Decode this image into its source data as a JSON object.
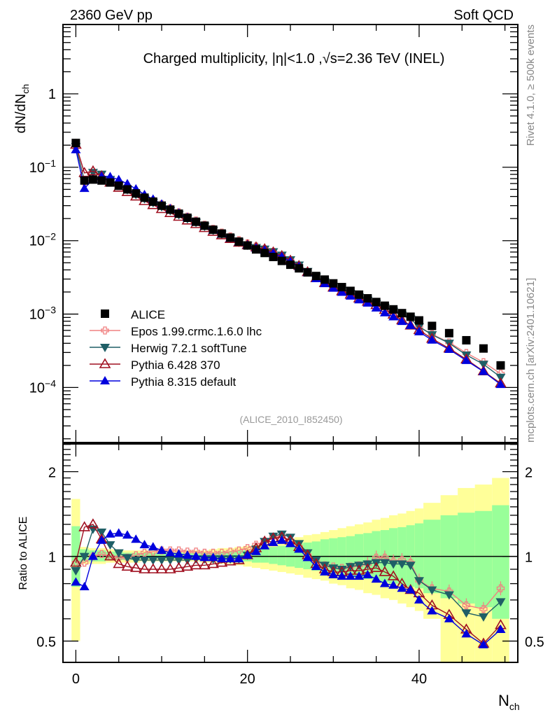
{
  "header": {
    "left_label": "2360 GeV pp",
    "right_label": "Soft QCD"
  },
  "side_labels": {
    "rivet": "Rivet 4.1.0, ≥ 500k events",
    "mcplots": "mcplots.cern.ch [arXiv:2401.10621]"
  },
  "chart_data": [
    {
      "type": "scatter",
      "panel": "main",
      "title": "Charged multiplicity, |η|<1.0 ,√s=2.36 TeV (INEL)",
      "xlabel": "N_ch",
      "ylabel": "dN/dN_ch",
      "yscale": "log",
      "xlim": [
        -1.5,
        51.5
      ],
      "ylim": [
        1.78e-05,
        8.8
      ],
      "yticks": [
        1,
        0.1,
        0.01,
        0.001,
        0.0001
      ],
      "ytick_labels": [
        "1",
        "10^-1",
        "10^-2",
        "10^-3",
        "10^-4"
      ],
      "xticks": [
        0,
        20,
        40
      ],
      "xtick_labels": [
        "0",
        "20",
        "40"
      ],
      "analysis_label": "(ALICE_2010_I852450)",
      "legend_position": "lower-left",
      "x": [
        0,
        1,
        2,
        3,
        4,
        5,
        6,
        7,
        8,
        9,
        10,
        11,
        12,
        13,
        14,
        15,
        16,
        17,
        18,
        19,
        20,
        21,
        22,
        23,
        24,
        25,
        26,
        27,
        28,
        29,
        30,
        31,
        32,
        33,
        34,
        35,
        36,
        37,
        38,
        39,
        40,
        41.5,
        43.5,
        45.5,
        47.5,
        49.5
      ],
      "series": [
        {
          "name": "ALICE",
          "style": "data",
          "color": "#000000",
          "marker": "square",
          "values": [
            0.214,
            0.066,
            0.068,
            0.066,
            0.062,
            0.056,
            0.05,
            0.044,
            0.0385,
            0.034,
            0.03,
            0.0265,
            0.0233,
            0.0205,
            0.0181,
            0.016,
            0.0141,
            0.0125,
            0.011,
            0.0097,
            0.0086,
            0.0076,
            0.0068,
            0.006,
            0.0053,
            0.0047,
            0.0042,
            0.0037,
            0.0033,
            0.00295,
            0.00262,
            0.00233,
            0.00207,
            0.00184,
            0.00164,
            0.00146,
            0.0013,
            0.00116,
            0.00103,
            0.00092,
            0.00082,
            0.00069,
            0.00055,
            0.00044,
            0.00034,
            0.0002
          ],
          "band_inner": [
            [
              0.78,
              1.28
            ],
            [
              0.96,
              1.06
            ],
            [
              0.96,
              1.05
            ],
            [
              0.96,
              1.05
            ],
            [
              0.97,
              1.04
            ],
            [
              0.97,
              1.04
            ],
            [
              0.97,
              1.03
            ],
            [
              0.97,
              1.03
            ],
            [
              0.98,
              1.03
            ],
            [
              0.98,
              1.03
            ],
            [
              0.98,
              1.03
            ],
            [
              0.98,
              1.03
            ],
            [
              0.98,
              1.03
            ],
            [
              0.98,
              1.03
            ],
            [
              0.98,
              1.03
            ],
            [
              0.98,
              1.03
            ],
            [
              0.97,
              1.03
            ],
            [
              0.97,
              1.04
            ],
            [
              0.97,
              1.04
            ],
            [
              0.96,
              1.05
            ],
            [
              0.96,
              1.05
            ],
            [
              0.95,
              1.06
            ],
            [
              0.95,
              1.07
            ],
            [
              0.94,
              1.08
            ],
            [
              0.93,
              1.09
            ],
            [
              0.92,
              1.1
            ],
            [
              0.91,
              1.11
            ],
            [
              0.9,
              1.12
            ],
            [
              0.89,
              1.13
            ],
            [
              0.88,
              1.15
            ],
            [
              0.87,
              1.16
            ],
            [
              0.86,
              1.17
            ],
            [
              0.85,
              1.18
            ],
            [
              0.84,
              1.2
            ],
            [
              0.83,
              1.21
            ],
            [
              0.82,
              1.23
            ],
            [
              0.81,
              1.24
            ],
            [
              0.8,
              1.26
            ],
            [
              0.79,
              1.27
            ],
            [
              0.78,
              1.29
            ],
            [
              0.77,
              1.31
            ],
            [
              0.74,
              1.35
            ],
            [
              0.71,
              1.4
            ],
            [
              0.68,
              1.43
            ],
            [
              0.66,
              1.45
            ],
            [
              0.6,
              1.52
            ]
          ],
          "band_outer": [
            [
              0.5,
              1.6
            ],
            [
              0.94,
              1.08
            ],
            [
              0.94,
              1.07
            ],
            [
              0.94,
              1.07
            ],
            [
              0.95,
              1.06
            ],
            [
              0.95,
              1.06
            ],
            [
              0.95,
              1.05
            ],
            [
              0.95,
              1.05
            ],
            [
              0.96,
              1.05
            ],
            [
              0.96,
              1.05
            ],
            [
              0.96,
              1.05
            ],
            [
              0.96,
              1.05
            ],
            [
              0.96,
              1.05
            ],
            [
              0.96,
              1.05
            ],
            [
              0.96,
              1.05
            ],
            [
              0.95,
              1.05
            ],
            [
              0.95,
              1.06
            ],
            [
              0.94,
              1.07
            ],
            [
              0.94,
              1.07
            ],
            [
              0.93,
              1.08
            ],
            [
              0.92,
              1.09
            ],
            [
              0.91,
              1.1
            ],
            [
              0.9,
              1.11
            ],
            [
              0.89,
              1.12
            ],
            [
              0.88,
              1.13
            ],
            [
              0.87,
              1.15
            ],
            [
              0.86,
              1.17
            ],
            [
              0.84,
              1.19
            ],
            [
              0.83,
              1.2
            ],
            [
              0.82,
              1.22
            ],
            [
              0.8,
              1.24
            ],
            [
              0.79,
              1.26
            ],
            [
              0.77,
              1.28
            ],
            [
              0.76,
              1.3
            ],
            [
              0.74,
              1.32
            ],
            [
              0.73,
              1.35
            ],
            [
              0.71,
              1.37
            ],
            [
              0.7,
              1.4
            ],
            [
              0.68,
              1.42
            ],
            [
              0.66,
              1.45
            ],
            [
              0.64,
              1.48
            ],
            [
              0.6,
              1.55
            ],
            [
              0.42,
              1.65
            ],
            [
              0.42,
              1.75
            ],
            [
              0.42,
              1.8
            ],
            [
              0.42,
              1.9
            ]
          ]
        },
        {
          "name": "Epos 1.99.crmc.1.6.0 lhc",
          "color": "#f08080",
          "marker": "open-cross",
          "ratio": [
            0.95,
            0.95,
            1.0,
            1.02,
            1.0,
            0.99,
            0.99,
            1.01,
            1.03,
            1.04,
            1.05,
            1.05,
            1.05,
            1.04,
            1.04,
            1.03,
            1.03,
            1.03,
            1.04,
            1.05,
            1.07,
            1.1,
            1.13,
            1.17,
            1.18,
            1.14,
            1.08,
            1.01,
            0.96,
            0.93,
            0.92,
            0.91,
            0.92,
            0.93,
            0.94,
            0.99,
            0.99,
            0.96,
            0.97,
            0.95,
            0.82,
            0.77,
            0.75,
            0.67,
            0.65,
            0.77
          ]
        },
        {
          "name": "Herwig 7.2.1 softTune",
          "color": "#1f5f66",
          "marker": "down-triangle",
          "ratio": [
            0.89,
            1.0,
            1.25,
            1.22,
            1.1,
            1.03,
            0.99,
            0.97,
            0.97,
            0.97,
            0.97,
            0.97,
            0.97,
            0.97,
            0.98,
            0.98,
            0.98,
            0.98,
            0.98,
            0.98,
            1.01,
            1.06,
            1.13,
            1.18,
            1.2,
            1.17,
            1.11,
            1.03,
            0.97,
            0.93,
            0.91,
            0.9,
            0.92,
            0.93,
            0.94,
            0.95,
            0.95,
            0.94,
            0.94,
            0.93,
            0.82,
            0.76,
            0.73,
            0.63,
            0.61,
            0.69
          ]
        },
        {
          "name": "Pythia 6.428 370",
          "color": "#a01020",
          "marker": "open-up-triangle",
          "ratio": [
            0.95,
            1.27,
            1.3,
            1.15,
            1.0,
            0.94,
            0.92,
            0.91,
            0.9,
            0.9,
            0.9,
            0.9,
            0.91,
            0.92,
            0.93,
            0.93,
            0.94,
            0.95,
            0.96,
            0.97,
            1.01,
            1.07,
            1.13,
            1.16,
            1.17,
            1.14,
            1.08,
            1.01,
            0.94,
            0.9,
            0.88,
            0.88,
            0.89,
            0.89,
            0.9,
            0.91,
            0.88,
            0.85,
            0.8,
            0.76,
            0.74,
            0.67,
            0.62,
            0.55,
            0.49,
            0.57
          ]
        },
        {
          "name": "Pythia 8.315 default",
          "color": "#0000dd",
          "marker": "up-triangle",
          "ratio": [
            0.81,
            0.78,
            1.0,
            1.14,
            1.2,
            1.21,
            1.19,
            1.15,
            1.1,
            1.08,
            1.05,
            1.03,
            1.02,
            1.01,
            1.0,
            0.99,
            0.99,
            0.98,
            0.98,
            0.98,
            1.01,
            1.04,
            1.09,
            1.12,
            1.14,
            1.11,
            1.06,
            0.99,
            0.92,
            0.88,
            0.86,
            0.85,
            0.85,
            0.85,
            0.86,
            0.83,
            0.8,
            0.79,
            0.77,
            0.76,
            0.7,
            0.64,
            0.6,
            0.53,
            0.485,
            0.55
          ]
        }
      ]
    },
    {
      "type": "scatter",
      "panel": "ratio",
      "ylabel": "Ratio to ALICE",
      "xlabel": "N_ch",
      "yscale": "log",
      "ylim": [
        0.42,
        2.51
      ],
      "yticks": [
        0.5,
        1,
        2
      ],
      "ytick_labels": [
        "0.5",
        "1",
        "2"
      ],
      "xlim": [
        -1.5,
        51.5
      ],
      "xticks": [
        0,
        20,
        40
      ],
      "xtick_labels": [
        "0",
        "20",
        "40"
      ],
      "reference_line": 1,
      "band_colors": {
        "inner": "#99ff99",
        "outer": "#ffff99"
      }
    }
  ]
}
